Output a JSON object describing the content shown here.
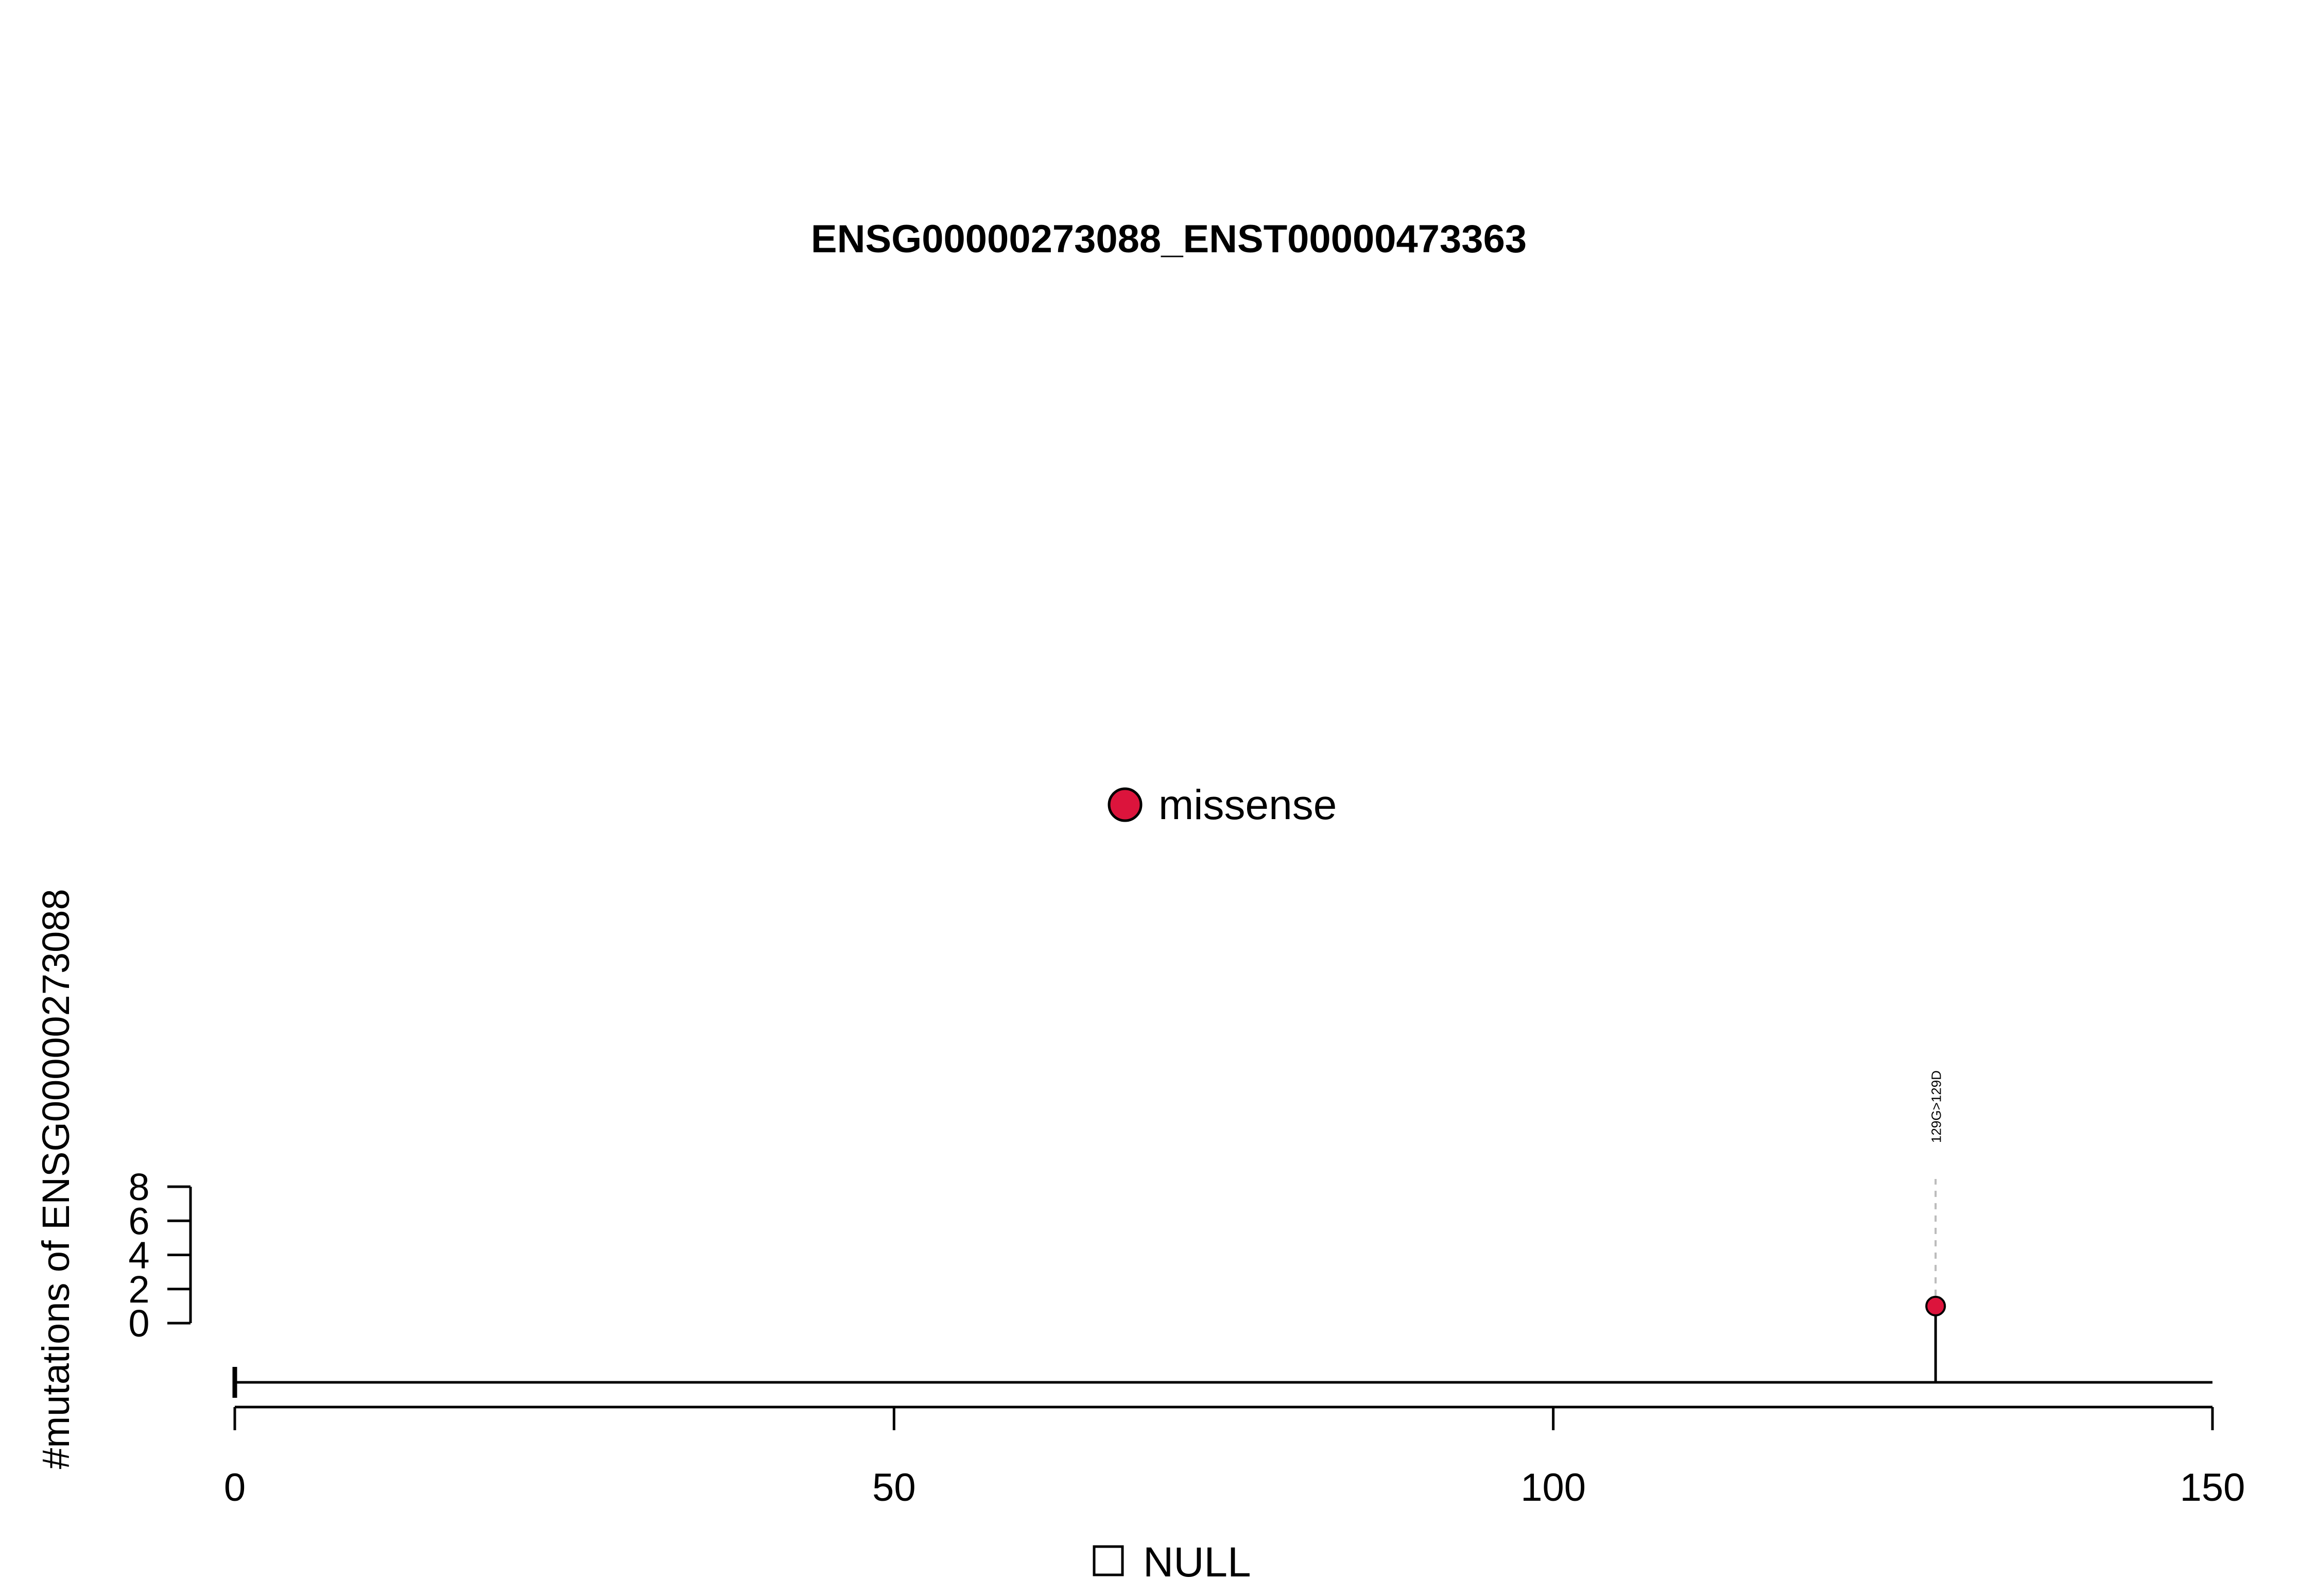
{
  "chart_data": {
    "type": "lollipop",
    "title": "ENSG00000273088_ENST00000473363",
    "xlabel": "",
    "ylabel": "#mutations of ENSG00000273088",
    "xlim": [
      0,
      150
    ],
    "x_ticks": [
      0,
      50,
      100,
      150
    ],
    "x_tick_labels": [
      "0",
      "50",
      "100",
      "150"
    ],
    "ylim": [
      0,
      8
    ],
    "y_ticks": [
      0,
      2,
      4,
      6,
      8
    ],
    "y_tick_labels": [
      "0",
      "2",
      "4",
      "6",
      "8"
    ],
    "grid": false,
    "legend": {
      "placement": "top-center",
      "items": [
        {
          "label": "missense",
          "color": "#DC143C"
        }
      ]
    },
    "domain_legend": {
      "placement": "bottom-center",
      "items": [
        {
          "label": "NULL",
          "color": "#ffffff"
        }
      ]
    },
    "series": [
      {
        "name": "missense",
        "color": "#DC143C",
        "points": [
          {
            "x": 129,
            "y": 1,
            "label": "129G>129D"
          }
        ]
      }
    ]
  }
}
